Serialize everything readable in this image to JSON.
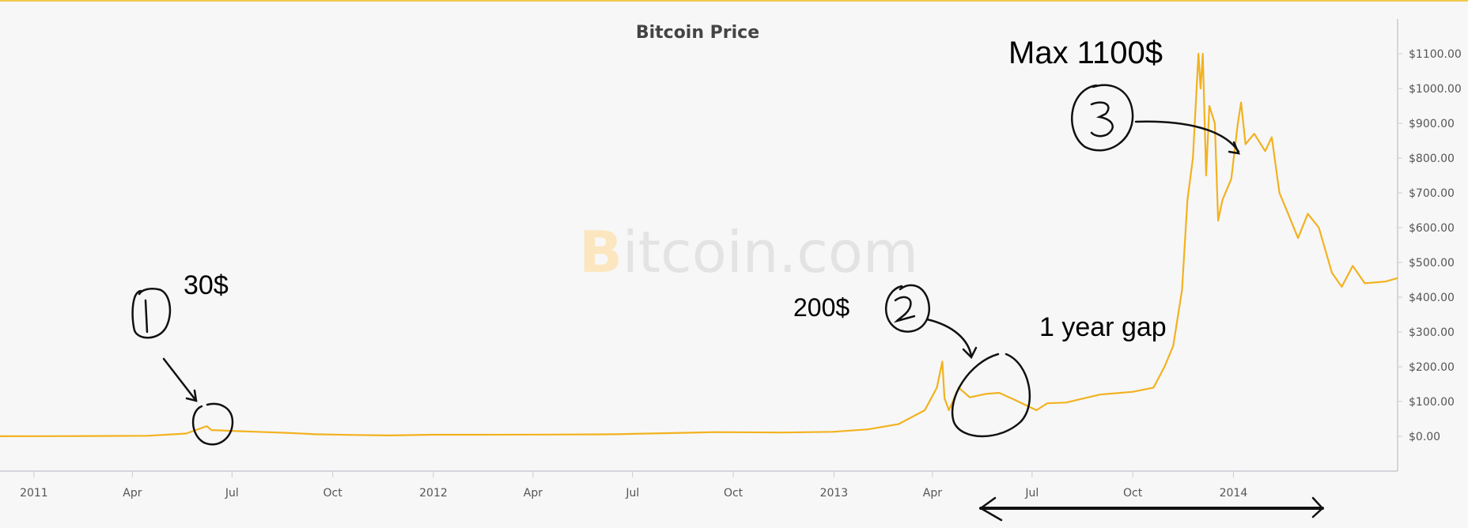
{
  "chart_data": {
    "type": "line",
    "title": "Bitcoin Price",
    "watermark": {
      "first": "B",
      "rest": "itcoin.com"
    },
    "xlabel": "",
    "ylabel": "",
    "x_ticks": [
      "2011",
      "Apr",
      "Jul",
      "Oct",
      "2012",
      "Apr",
      "Jul",
      "Oct",
      "2013",
      "Apr",
      "Jul",
      "Oct",
      "2014"
    ],
    "y_ticks": [
      "$0.00",
      "$100.00",
      "$200.00",
      "$300.00",
      "$400.00",
      "$500.00",
      "$600.00",
      "$700.00",
      "$800.00",
      "$900.00",
      "$1000.00",
      "$1100.00"
    ],
    "ylim": [
      -100,
      1200
    ],
    "xlim": [
      "2010-12-01",
      "2014-05-31"
    ],
    "grid": false,
    "series": [
      {
        "color": "#f2b21f",
        "points": [
          [
            "2010-12-01",
            0.2
          ],
          [
            "2011-01-15",
            0.4
          ],
          [
            "2011-03-01",
            0.9
          ],
          [
            "2011-04-15",
            1.5
          ],
          [
            "2011-05-20",
            8
          ],
          [
            "2011-06-08",
            29
          ],
          [
            "2011-06-12",
            18
          ],
          [
            "2011-06-20",
            17
          ],
          [
            "2011-07-05",
            15
          ],
          [
            "2011-08-01",
            12
          ],
          [
            "2011-08-20",
            10
          ],
          [
            "2011-09-15",
            6
          ],
          [
            "2011-10-15",
            4
          ],
          [
            "2011-11-20",
            2.5
          ],
          [
            "2011-12-31",
            4.5
          ],
          [
            "2012-02-15",
            4.5
          ],
          [
            "2012-04-15",
            5
          ],
          [
            "2012-06-15",
            6
          ],
          [
            "2012-08-15",
            10
          ],
          [
            "2012-09-15",
            12
          ],
          [
            "2012-11-15",
            11
          ],
          [
            "2012-12-31",
            13
          ],
          [
            "2013-02-01",
            20
          ],
          [
            "2013-03-01",
            35
          ],
          [
            "2013-03-25",
            75
          ],
          [
            "2013-04-05",
            140
          ],
          [
            "2013-04-10",
            215
          ],
          [
            "2013-04-12",
            110
          ],
          [
            "2013-04-16",
            75
          ],
          [
            "2013-04-25",
            140
          ],
          [
            "2013-05-05",
            112
          ],
          [
            "2013-05-20",
            122
          ],
          [
            "2013-06-01",
            125
          ],
          [
            "2013-06-15",
            105
          ],
          [
            "2013-07-05",
            75
          ],
          [
            "2013-07-15",
            95
          ],
          [
            "2013-08-01",
            97
          ],
          [
            "2013-09-01",
            120
          ],
          [
            "2013-10-01",
            128
          ],
          [
            "2013-10-20",
            140
          ],
          [
            "2013-10-30",
            200
          ],
          [
            "2013-11-07",
            260
          ],
          [
            "2013-11-15",
            420
          ],
          [
            "2013-11-20",
            680
          ],
          [
            "2013-11-25",
            800
          ],
          [
            "2013-11-30",
            1100
          ],
          [
            "2013-12-02",
            1000
          ],
          [
            "2013-12-04",
            1100
          ],
          [
            "2013-12-07",
            750
          ],
          [
            "2013-12-10",
            950
          ],
          [
            "2013-12-15",
            900
          ],
          [
            "2013-12-18",
            620
          ],
          [
            "2013-12-22",
            680
          ],
          [
            "2013-12-30",
            740
          ],
          [
            "2014-01-05",
            900
          ],
          [
            "2014-01-08",
            960
          ],
          [
            "2014-01-12",
            840
          ],
          [
            "2014-01-20",
            870
          ],
          [
            "2014-01-30",
            820
          ],
          [
            "2014-02-05",
            860
          ],
          [
            "2014-02-12",
            700
          ],
          [
            "2014-02-20",
            640
          ],
          [
            "2014-03-01",
            570
          ],
          [
            "2014-03-10",
            640
          ],
          [
            "2014-03-20",
            600
          ],
          [
            "2014-04-01",
            470
          ],
          [
            "2014-04-10",
            430
          ],
          [
            "2014-04-20",
            490
          ],
          [
            "2014-05-01",
            440
          ],
          [
            "2014-05-20",
            445
          ],
          [
            "2014-05-31",
            455
          ]
        ]
      }
    ]
  },
  "annotations": [
    {
      "name": "annotation-30",
      "text": "30$"
    },
    {
      "name": "annotation-200",
      "text": "200$"
    },
    {
      "name": "annotation-1-year-gap",
      "text": "1 year gap"
    },
    {
      "name": "annotation-max",
      "text": "Max 1100$"
    }
  ]
}
